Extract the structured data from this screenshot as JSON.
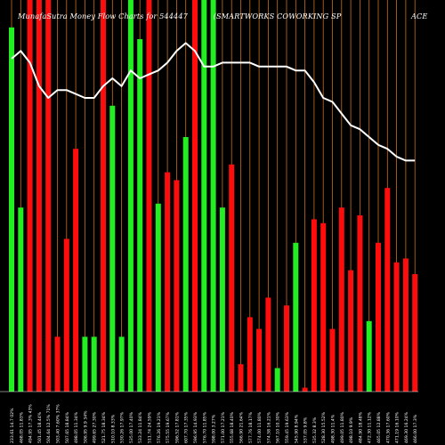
{
  "title": {
    "left": "MunafaSutra  Money Flow  Charts for 544447",
    "middle": "(SMARTWORKS COWORKING SP",
    "right": "ACE"
  },
  "chart_data": {
    "type": "bar",
    "xlabel": "",
    "ylabel": "",
    "grid": "vertical",
    "ylim": [
      0,
      100
    ],
    "categories": [
      "233.61 14.7 02%",
      "468.05 11.83%",
      "494.95 17.3% 43%",
      "501.45 18.44%",
      "504.64 12.5% 71%",
      "503.40 7.60% 37%",
      "507.65 18.84%",
      "498.05 11.34%",
      "506.95 9.9 34%",
      "499.65 27.30%",
      "521.75 18.34%",
      "510.10 8.33%",
      "530.26 17.97%",
      "535.00 17.40%",
      "533.24 11.84%",
      "511.74 24.59%",
      "576.26 19.21%",
      "575.55 19.67%",
      "596.52 17.81%",
      "607.70 17.35%",
      "596.95 14.93%",
      "576.70 11.85%",
      "598.00 3.27%",
      "571.00 17.21%",
      "555.68 18.40%",
      "566.90 21.64%",
      "577.76 18.17%",
      "574.00 11.80%",
      "574.58 16.21%",
      "567.10 10.30%",
      "559.45 19.63%",
      "545.90 8.94%",
      "537.05 9.8%",
      "535.32 8.3%",
      "528.30 15.52%",
      "498.30 11.4%",
      "499.05 11.80%",
      "498.10 9.9%",
      "484.90 18.48%",
      "472.30 11.12%",
      "465.05 12.88%",
      "470.36 17.60%",
      "471.19 16.10%",
      "469.30 16.24%",
      "466.00 17.3%"
    ],
    "values": [
      93,
      47,
      100,
      100,
      100,
      14,
      39,
      62,
      14,
      14,
      100,
      73,
      14,
      100,
      90,
      100,
      48,
      56,
      54,
      65,
      100,
      100,
      100,
      47,
      58,
      7,
      19,
      16,
      24,
      6,
      22,
      38,
      1,
      44,
      43,
      16,
      47,
      31,
      45,
      18,
      38,
      52,
      33,
      34,
      30
    ],
    "colors": [
      "green",
      "green",
      "red",
      "red",
      "red",
      "red",
      "red",
      "red",
      "green",
      "green",
      "red",
      "green",
      "green",
      "green",
      "green",
      "red",
      "green",
      "red",
      "red",
      "green",
      "red",
      "green",
      "green",
      "green",
      "red",
      "red",
      "red",
      "red",
      "red",
      "green",
      "red",
      "green",
      "red",
      "red",
      "red",
      "red",
      "red",
      "red",
      "red",
      "green",
      "red",
      "red",
      "red",
      "red",
      "red"
    ],
    "price_line": [
      85,
      87,
      84,
      78,
      75,
      77,
      77,
      76,
      75,
      75,
      78,
      80,
      78,
      82,
      80,
      81,
      82,
      84,
      87,
      89,
      87,
      83,
      83,
      84,
      84,
      84,
      84,
      83,
      83,
      83,
      83,
      82,
      82,
      79,
      75,
      74,
      71,
      68,
      67,
      65,
      63,
      62,
      60,
      59,
      59
    ]
  },
  "style": {
    "background": "#000000",
    "green": "#22ee22",
    "red": "#ff0d0d",
    "grid": "#c8701a",
    "line": "#ffffff",
    "label": "#ffffff"
  }
}
